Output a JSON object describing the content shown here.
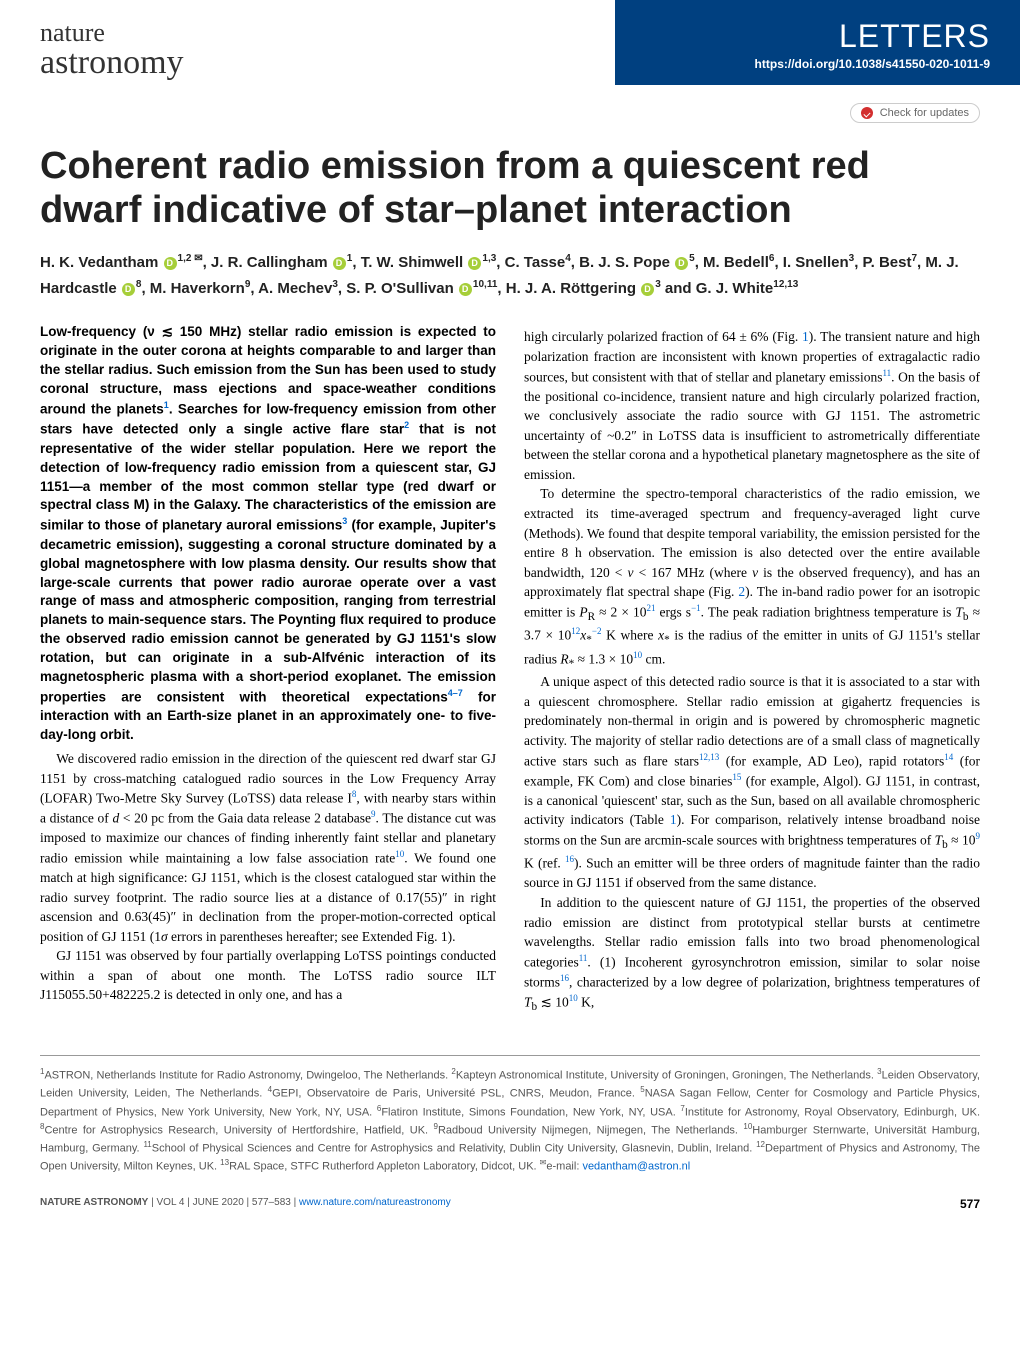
{
  "header": {
    "journal_line1": "nature",
    "journal_line2": "astronomy",
    "section": "LETTERS",
    "doi": "https://doi.org/10.1038/s41550-020-1011-9",
    "check_updates": "Check for updates"
  },
  "title": "Coherent radio emission from a quiescent red dwarf indicative of star–planet interaction",
  "authors_html": "H. K. Vedantham <span class='orcid'></span><sup>1,2 ✉</sup>, J. R. Callingham <span class='orcid'></span><sup>1</sup>, T. W. Shimwell <span class='orcid'></span><sup>1,3</sup>, C. Tasse<sup>4</sup>, B. J. S. Pope <span class='orcid'></span><sup>5</sup>, M. Bedell<sup>6</sup>, I. Snellen<sup>3</sup>, P. Best<sup>7</sup>, M. J. Hardcastle <span class='orcid'></span><sup>8</sup>, M. Haverkorn<sup>9</sup>, A. Mechev<sup>3</sup>, S. P. O'Sullivan <span class='orcid'></span><sup>10,11</sup>, H. J. A. Röttgering <span class='orcid'></span><sup>3</sup> and G. J. White<sup>12,13</sup>",
  "abstract": "Low-frequency (ν ≲ 150 MHz) stellar radio emission is expected to originate in the outer corona at heights comparable to and larger than the stellar radius. Such emission from the Sun has been used to study coronal structure, mass ejections and space-weather conditions around the planets<sup>1</sup>. Searches for low-frequency emission from other stars have detected only a single active flare star<sup>2</sup> that is not representative of the wider stellar population. Here we report the detection of low-frequency radio emission from a quiescent star, GJ 1151—a member of the most common stellar type (red dwarf or spectral class M) in the Galaxy. The characteristics of the emission are similar to those of planetary auroral emissions<sup>3</sup> (for example, Jupiter's decametric emission), suggesting a coronal structure dominated by a global magnetosphere with low plasma density. Our results show that large-scale currents that power radio aurorae operate over a vast range of mass and atmospheric composition, ranging from terrestrial planets to main-sequence stars. The Poynting flux required to produce the observed radio emission cannot be generated by GJ 1151's slow rotation, but can originate in a sub-Alfvénic interaction of its magnetospheric plasma with a short-period exoplanet. The emission properties are consistent with theoretical expectations<sup>4–7</sup> for interaction with an Earth-size planet in an approximately one- to five-day-long orbit.",
  "col1_body": [
    "We discovered radio emission in the direction of the quiescent red dwarf star GJ 1151 by cross-matching catalogued radio sources in the Low Frequency Array (LOFAR) Two-Metre Sky Survey (LoTSS) data release I<sup>8</sup>, with nearby stars within a distance of <i>d</i> < 20 pc from the Gaia data release 2 database<sup>9</sup>. The distance cut was imposed to maximize our chances of finding inherently faint stellar and planetary radio emission while maintaining a low false association rate<sup>10</sup>. We found one match at high significance: GJ 1151, which is the closest catalogued star within the radio survey footprint. The radio source lies at a distance of 0.17(55)″ in right ascension and 0.63(45)″ in declination from the proper-motion-corrected optical position of GJ 1151 (1<i>σ</i> errors in parentheses hereafter; see Extended Fig. 1).",
    "GJ 1151 was observed by four partially overlapping LoTSS pointings conducted within a span of about one month. The LoTSS radio source ILT J115055.50+482225.2 is detected in only one, and has a"
  ],
  "col2_body": [
    "high circularly polarized fraction of 64 ± 6% (Fig. <span class='ref'>1</span>). The transient nature and high polarization fraction are inconsistent with known properties of extragalactic radio sources, but consistent with that of stellar and planetary emissions<sup>11</sup>. On the basis of the positional co-incidence, transient nature and high circularly polarized fraction, we conclusively associate the radio source with GJ 1151. The astrometric uncertainty of ~0.2″ in LoTSS data is insufficient to astrometrically differentiate between the stellar corona and a hypothetical planetary magnetosphere as the site of emission.",
    "To determine the spectro-temporal characteristics of the radio emission, we extracted its time-averaged spectrum and frequency-averaged light curve (Methods). We found that despite temporal variability, the emission persisted for the entire 8 h observation. The emission is also detected over the entire available bandwidth, 120 < <i>ν</i> < 167 MHz (where <i>ν</i> is the observed frequency), and has an approximately flat spectral shape (Fig. <span class='ref'>2</span>). The in-band radio power for an isotropic emitter is <i>P</i><sub>R</sub> ≈ 2 × 10<sup>21</sup> ergs s<sup>−1</sup>. The peak radiation brightness temperature is <i>T</i><sub>b</sub> ≈ 3.7 × 10<sup>12</sup><i>x</i><sub>*</sub><sup>−2</sup> K where <i>x</i><sub>*</sub> is the radius of the emitter in units of GJ 1151's stellar radius <i>R</i><sub>*</sub> ≈ 1.3 × 10<sup>10</sup> cm.",
    "A unique aspect of this detected radio source is that it is associated to a star with a quiescent chromosphere. Stellar radio emission at gigahertz frequencies is predominately non-thermal in origin and is powered by chromospheric magnetic activity. The majority of stellar radio detections are of a small class of magnetically active stars such as flare stars<sup>12,13</sup> (for example, AD Leo), rapid rotators<sup>14</sup> (for example, FK Com) and close binaries<sup>15</sup> (for example, Algol). GJ 1151, in contrast, is a canonical 'quiescent' star, such as the Sun, based on all available chromospheric activity indicators (Table <span class='ref'>1</span>). For comparison, relatively intense broadband noise storms on the Sun are arcmin-scale sources with brightness temperatures of <i>T</i><sub>b</sub> ≈ 10<sup>9</sup> K (ref. <sup>16</sup>). Such an emitter will be three orders of magnitude fainter than the radio source in GJ 1151 if observed from the same distance.",
    "In addition to the quiescent nature of GJ 1151, the properties of the observed radio emission are distinct from prototypical stellar bursts at centimetre wavelengths. Stellar radio emission falls into two broad phenomenological categories<sup>11</sup>. (1) Incoherent gyrosynchrotron emission, similar to solar noise storms<sup>16</sup>, characterized by a low degree of polarization, brightness temperatures of <i>T</i><sub>b</sub> ≲ 10<sup>10</sup> K,"
  ],
  "affiliations": "<sup>1</sup>ASTRON, Netherlands Institute for Radio Astronomy, Dwingeloo, The Netherlands. <sup>2</sup>Kapteyn Astronomical Institute, University of Groningen, Groningen, The Netherlands. <sup>3</sup>Leiden Observatory, Leiden University, Leiden, The Netherlands. <sup>4</sup>GEPI, Observatoire de Paris, Université PSL, CNRS, Meudon, France. <sup>5</sup>NASA Sagan Fellow, Center for Cosmology and Particle Physics, Department of Physics, New York University, New York, NY, USA. <sup>6</sup>Flatiron Institute, Simons Foundation, New York, NY, USA. <sup>7</sup>Institute for Astronomy, Royal Observatory, Edinburgh, UK. <sup>8</sup>Centre for Astrophysics Research, University of Hertfordshire, Hatfield, UK. <sup>9</sup>Radboud University Nijmegen, Nijmegen, The Netherlands. <sup>10</sup>Hamburger Sternwarte, Universität Hamburg, Hamburg, Germany. <sup>11</sup>School of Physical Sciences and Centre for Astrophysics and Relativity, Dublin City University, Glasnevin, Dublin, Ireland. <sup>12</sup>Department of Physics and Astronomy, The Open University, Milton Keynes, UK. <sup>13</sup>RAL Space, STFC Rutherford Appleton Laboratory, Didcot, UK. <sup>✉</sup>e-mail: <span class='email'>vedantham@astron.nl</span>",
  "footer": {
    "journal": "NATURE ASTRONOMY",
    "issue": " | VOL 4 | JUNE 2020 | 577–583 | ",
    "url": "www.nature.com/natureastronomy",
    "page": "577"
  },
  "colors": {
    "header_bg": "#004080",
    "link": "#0066cc",
    "orcid": "#a6ce39",
    "check_icon": "#d32f2f"
  }
}
